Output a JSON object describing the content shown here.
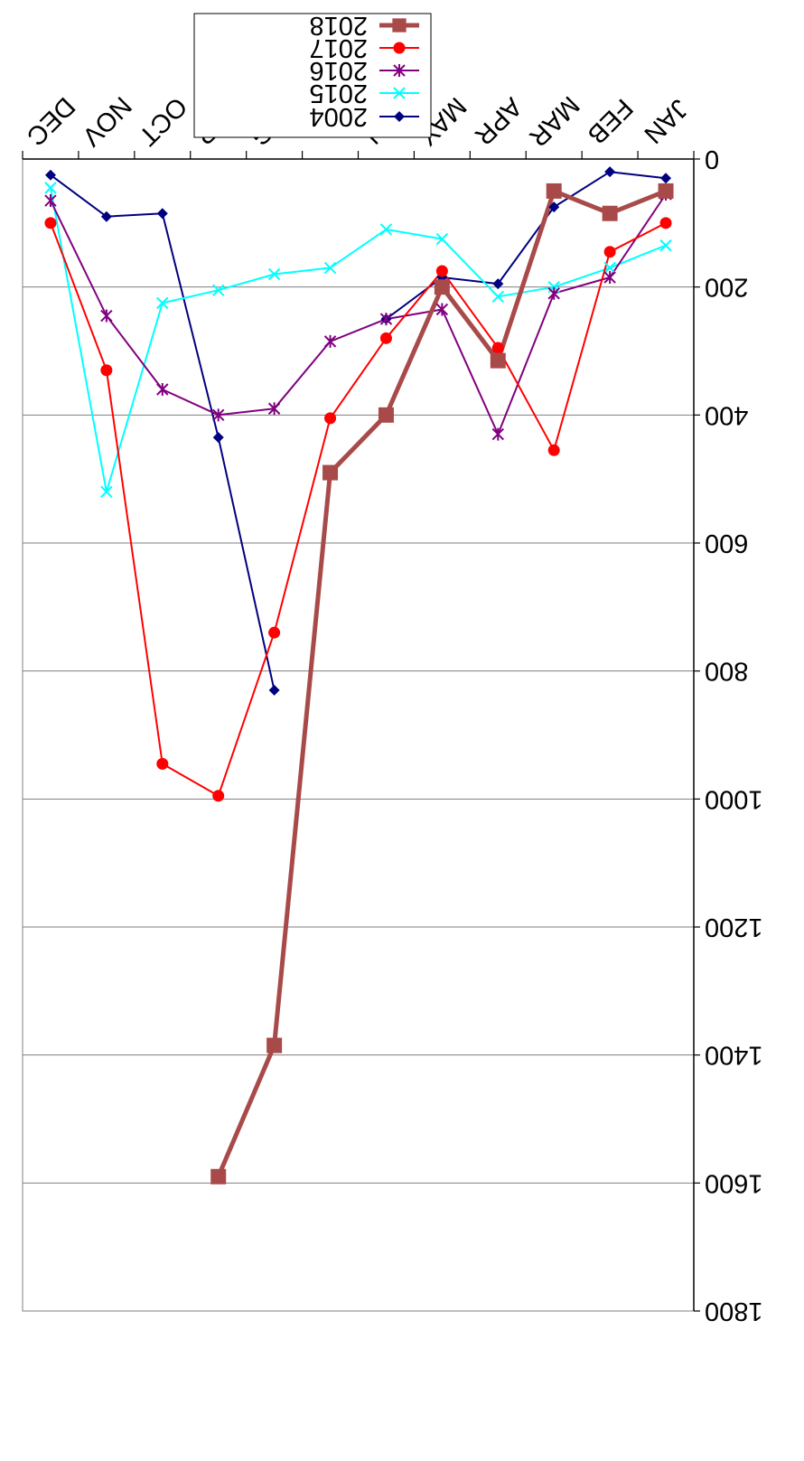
{
  "chart_data": {
    "type": "line",
    "title": "",
    "xlabel": "",
    "ylabel": "",
    "orientation": "rotated-180",
    "categories": [
      "JAN",
      "FEB",
      "MAR",
      "APR",
      "MAY",
      "JUN",
      "JUL",
      "AUG",
      "SEP",
      "OCT",
      "NOV",
      "DEC"
    ],
    "ylim": [
      0,
      1800
    ],
    "yticks": [
      "0",
      "200",
      "400",
      "600",
      "800",
      "1000",
      "1200",
      "1400",
      "1600",
      "1800"
    ],
    "grid": true,
    "legend_position": "bottom-left",
    "series": [
      {
        "name": "2004",
        "color": "#000080",
        "marker": "diamond",
        "values": [
          30,
          20,
          75,
          195,
          185,
          250,
          null,
          830,
          435,
          85,
          90,
          25
        ]
      },
      {
        "name": "2015",
        "color": "#00ffff",
        "marker": "x",
        "values": [
          135,
          170,
          200,
          215,
          125,
          110,
          170,
          180,
          205,
          225,
          520,
          45
        ]
      },
      {
        "name": "2016",
        "color": "#800080",
        "marker": "asterisk",
        "values": [
          55,
          185,
          210,
          430,
          235,
          250,
          285,
          390,
          400,
          360,
          245,
          65
        ]
      },
      {
        "name": "2017",
        "color": "#ff0000",
        "marker": "circle",
        "values": [
          100,
          145,
          455,
          295,
          175,
          280,
          405,
          740,
          995,
          945,
          330,
          100
        ]
      },
      {
        "name": "2018",
        "color": "#a94a4a",
        "marker": "square",
        "values": [
          50,
          85,
          50,
          315,
          200,
          400,
          490,
          1385,
          1590,
          null,
          null,
          null
        ]
      }
    ]
  }
}
